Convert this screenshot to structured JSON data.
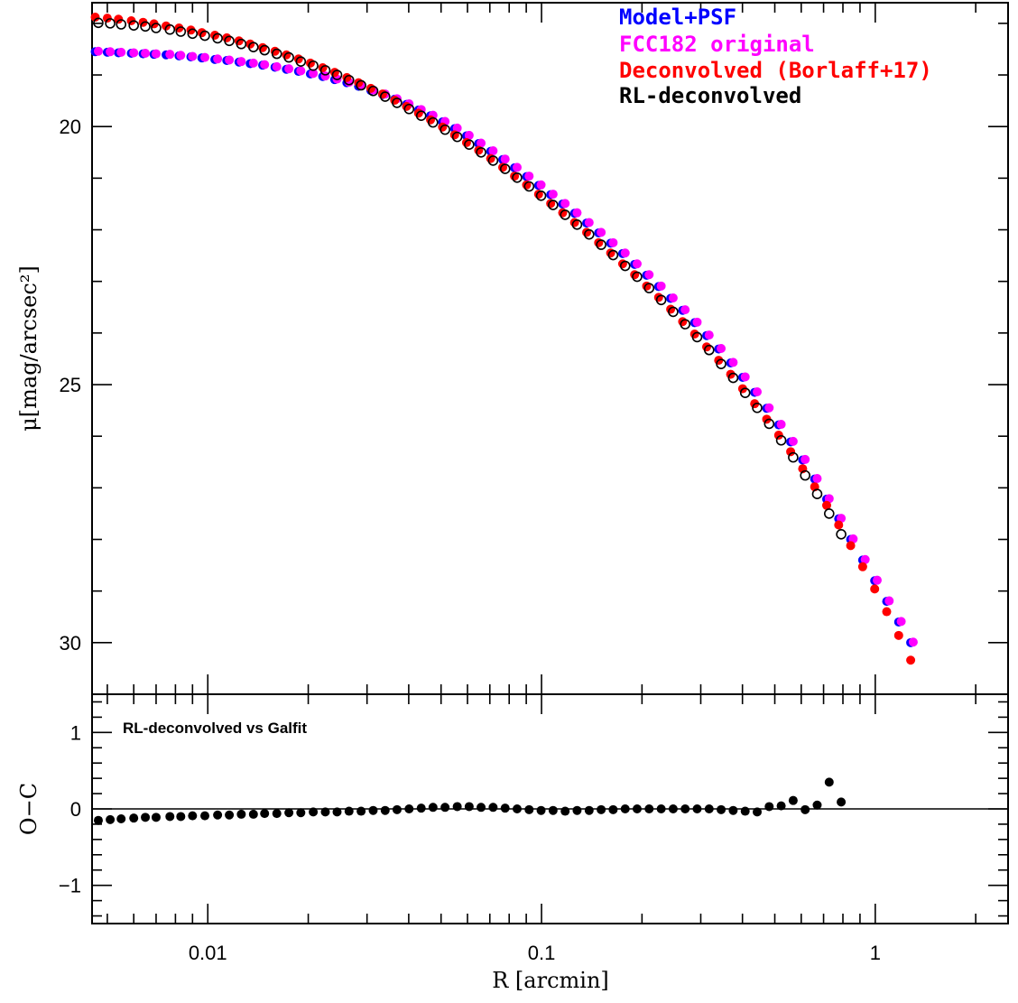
{
  "chart_data": [
    {
      "panel": "main",
      "type": "scatter",
      "title": "",
      "xlabel": "R [arcmin]",
      "ylabel": "μ[mag/arcsec²]",
      "xscale": "log",
      "xlim": [
        0.0045,
        2.5
      ],
      "ylim": [
        31.0,
        17.6
      ],
      "y_inverted": true,
      "y_ticks": [
        20,
        25,
        30
      ],
      "x_ticks": [
        0.01,
        0.1,
        1
      ],
      "x_tick_labels": [
        "0.01",
        "0.1",
        "1"
      ],
      "legend_position": "top-right",
      "series": [
        {
          "name": "Model+PSF",
          "color": "#0000ff",
          "marker": "filled",
          "x": [
            0.0046,
            0.005,
            0.0054,
            0.0059,
            0.0064,
            0.0069,
            0.0075,
            0.0082,
            0.0089,
            0.0096,
            0.0105,
            0.0114,
            0.0124,
            0.0134,
            0.0146,
            0.0159,
            0.0172,
            0.0187,
            0.0203,
            0.0221,
            0.024,
            0.0261,
            0.0283,
            0.0308,
            0.0334,
            0.0363,
            0.0394,
            0.0428,
            0.0465,
            0.0505,
            0.0549,
            0.0596,
            0.0648,
            0.0704,
            0.0765,
            0.083,
            0.0902,
            0.098,
            0.1065,
            0.1157,
            0.1256,
            0.1365,
            0.1483,
            0.1611,
            0.175,
            0.1901,
            0.2065,
            0.2243,
            0.2437,
            0.2647,
            0.2876,
            0.3124,
            0.3394,
            0.3687,
            0.4005,
            0.4351,
            0.4727,
            0.5135,
            0.5578,
            0.606,
            0.6583,
            0.7151,
            0.7769,
            0.8439,
            0.9168,
            0.996,
            1.082,
            1.1754,
            1.2768
          ],
          "y": [
            18.55,
            18.56,
            18.57,
            18.58,
            18.59,
            18.6,
            18.61,
            18.63,
            18.65,
            18.67,
            18.7,
            18.72,
            18.75,
            18.78,
            18.81,
            18.85,
            18.89,
            18.93,
            18.98,
            19.03,
            19.09,
            19.15,
            19.22,
            19.3,
            19.38,
            19.47,
            19.57,
            19.68,
            19.79,
            19.91,
            20.04,
            20.18,
            20.33,
            20.48,
            20.64,
            20.8,
            20.97,
            21.14,
            21.32,
            21.5,
            21.68,
            21.87,
            22.06,
            22.26,
            22.46,
            22.67,
            22.88,
            23.1,
            23.33,
            23.56,
            23.8,
            24.05,
            24.31,
            24.58,
            24.86,
            25.15,
            25.46,
            25.78,
            26.11,
            26.46,
            26.83,
            27.22,
            27.6,
            28.0,
            28.4,
            28.8,
            29.2,
            29.6,
            30.0
          ]
        },
        {
          "name": "FCC182 original",
          "color": "#ff00ff",
          "marker": "filled",
          "x": [
            0.0047,
            0.0051,
            0.0055,
            0.006,
            0.0065,
            0.007,
            0.0077,
            0.0083,
            0.009,
            0.0098,
            0.0107,
            0.0116,
            0.0126,
            0.0137,
            0.0148,
            0.0161,
            0.0175,
            0.019,
            0.0207,
            0.0225,
            0.0244,
            0.0265,
            0.0288,
            0.0313,
            0.034,
            0.0369,
            0.0401,
            0.0436,
            0.0473,
            0.0514,
            0.0559,
            0.0607,
            0.0659,
            0.0716,
            0.0778,
            0.0845,
            0.0918,
            0.0997,
            0.1083,
            0.1177,
            0.1278,
            0.1389,
            0.1509,
            0.1639,
            0.1781,
            0.1934,
            0.2101,
            0.2283,
            0.248,
            0.2694,
            0.2926,
            0.3179,
            0.3453,
            0.3752,
            0.4076,
            0.4428,
            0.481,
            0.5225,
            0.5676,
            0.6166,
            0.6698,
            0.7277,
            0.7905,
            0.8587,
            0.9329,
            1.0135,
            1.101,
            1.1961,
            1.2994
          ],
          "y": [
            18.54,
            18.55,
            18.56,
            18.57,
            18.58,
            18.59,
            18.6,
            18.62,
            18.64,
            18.66,
            18.69,
            18.71,
            18.74,
            18.77,
            18.8,
            18.84,
            18.88,
            18.92,
            18.97,
            19.02,
            19.08,
            19.14,
            19.21,
            19.29,
            19.37,
            19.46,
            19.56,
            19.67,
            19.78,
            19.9,
            20.03,
            20.17,
            20.32,
            20.47,
            20.63,
            20.79,
            20.96,
            21.13,
            21.31,
            21.49,
            21.67,
            21.86,
            22.05,
            22.25,
            22.45,
            22.66,
            22.87,
            23.09,
            23.32,
            23.55,
            23.79,
            24.04,
            24.3,
            24.57,
            24.85,
            25.14,
            25.45,
            25.77,
            26.1,
            26.45,
            26.82,
            27.21,
            27.59,
            27.99,
            28.39,
            28.79,
            29.19,
            29.59,
            29.99
          ]
        },
        {
          "name": "Deconvolved (Borlaff+17)",
          "color": "#ff0000",
          "marker": "filled",
          "x": [
            0.0046,
            0.005,
            0.0054,
            0.0059,
            0.0064,
            0.0069,
            0.0075,
            0.0082,
            0.0089,
            0.0096,
            0.0105,
            0.0114,
            0.0124,
            0.0134,
            0.0146,
            0.0159,
            0.0172,
            0.0187,
            0.0203,
            0.0221,
            0.024,
            0.0261,
            0.0283,
            0.0308,
            0.0334,
            0.0363,
            0.0394,
            0.0428,
            0.0465,
            0.0505,
            0.0549,
            0.0596,
            0.0648,
            0.0704,
            0.0765,
            0.083,
            0.0902,
            0.098,
            0.1065,
            0.1157,
            0.1256,
            0.1365,
            0.1483,
            0.1611,
            0.175,
            0.1901,
            0.2065,
            0.2243,
            0.2437,
            0.2647,
            0.2876,
            0.3124,
            0.3394,
            0.3687,
            0.4005,
            0.4351,
            0.4727,
            0.5135,
            0.5578,
            0.606,
            0.6583,
            0.7151,
            0.7769,
            0.8439,
            0.9168,
            0.996,
            1.082,
            1.1754,
            1.2768
          ],
          "y": [
            17.88,
            17.9,
            17.92,
            17.95,
            17.98,
            18.01,
            18.05,
            18.09,
            18.13,
            18.18,
            18.23,
            18.28,
            18.34,
            18.4,
            18.47,
            18.54,
            18.61,
            18.69,
            18.77,
            18.86,
            18.95,
            19.05,
            19.15,
            19.26,
            19.37,
            19.49,
            19.61,
            19.74,
            19.87,
            20.01,
            20.16,
            20.31,
            20.46,
            20.62,
            20.79,
            20.96,
            21.13,
            21.31,
            21.49,
            21.67,
            21.86,
            22.05,
            22.25,
            22.45,
            22.66,
            22.87,
            23.09,
            23.31,
            23.54,
            23.78,
            24.02,
            24.27,
            24.53,
            24.8,
            25.08,
            25.37,
            25.67,
            25.98,
            26.3,
            26.63,
            26.98,
            27.34,
            27.72,
            28.12,
            28.53,
            28.96,
            29.4,
            29.86,
            30.34
          ]
        },
        {
          "name": "RL-deconvolved",
          "color": "#000000",
          "marker": "open",
          "x": [
            0.0047,
            0.0051,
            0.0055,
            0.006,
            0.0065,
            0.007,
            0.0077,
            0.0083,
            0.009,
            0.0098,
            0.0107,
            0.0116,
            0.0126,
            0.0137,
            0.0148,
            0.0161,
            0.0175,
            0.019,
            0.0207,
            0.0225,
            0.0244,
            0.0265,
            0.0288,
            0.0313,
            0.034,
            0.0369,
            0.0401,
            0.0436,
            0.0473,
            0.0514,
            0.0559,
            0.0607,
            0.0659,
            0.0716,
            0.0778,
            0.0845,
            0.0918,
            0.0997,
            0.1083,
            0.1177,
            0.1278,
            0.1389,
            0.1509,
            0.1639,
            0.1781,
            0.1934,
            0.2101,
            0.2283,
            0.248,
            0.2694,
            0.2926,
            0.3179,
            0.3453,
            0.3752,
            0.4076,
            0.4428,
            0.481,
            0.5225,
            0.5676,
            0.6166,
            0.6698,
            0.7277,
            0.7905
          ],
          "y": [
            17.99,
            18.0,
            18.02,
            18.04,
            18.06,
            18.09,
            18.12,
            18.16,
            18.2,
            18.24,
            18.29,
            18.34,
            18.4,
            18.46,
            18.52,
            18.59,
            18.66,
            18.74,
            18.82,
            18.91,
            19.0,
            19.1,
            19.2,
            19.31,
            19.42,
            19.54,
            19.66,
            19.79,
            19.92,
            20.06,
            20.2,
            20.35,
            20.5,
            20.66,
            20.82,
            20.99,
            21.16,
            21.34,
            21.52,
            21.71,
            21.9,
            22.09,
            22.29,
            22.49,
            22.7,
            22.91,
            23.13,
            23.36,
            23.59,
            23.83,
            24.08,
            24.33,
            24.6,
            24.87,
            25.16,
            25.45,
            25.76,
            26.08,
            26.41,
            26.76,
            27.12,
            27.5,
            27.9
          ]
        }
      ]
    },
    {
      "panel": "residual",
      "type": "scatter",
      "xlabel": "R [arcmin]",
      "ylabel": "O−C",
      "xscale": "log",
      "xlim": [
        0.0045,
        2.5
      ],
      "ylim": [
        -1.5,
        1.5
      ],
      "y_ticks": [
        -1,
        0,
        1
      ],
      "y_tick_labels": [
        "−1",
        "0",
        "1"
      ],
      "reference_line": 0,
      "annotation": "RL-deconvolved vs Galfit",
      "series": [
        {
          "name": "O-C",
          "color": "#000000",
          "marker": "filled",
          "x": [
            0.0047,
            0.0051,
            0.0055,
            0.006,
            0.0065,
            0.007,
            0.0077,
            0.0083,
            0.009,
            0.0098,
            0.0107,
            0.0116,
            0.0126,
            0.0137,
            0.0148,
            0.0161,
            0.0175,
            0.019,
            0.0207,
            0.0225,
            0.0244,
            0.0265,
            0.0288,
            0.0313,
            0.034,
            0.0369,
            0.0401,
            0.0436,
            0.0473,
            0.0514,
            0.0559,
            0.0607,
            0.0659,
            0.0716,
            0.0778,
            0.0845,
            0.0918,
            0.0997,
            0.1083,
            0.1177,
            0.1278,
            0.1389,
            0.1509,
            0.1639,
            0.1781,
            0.1934,
            0.2101,
            0.2283,
            0.248,
            0.2694,
            0.2926,
            0.3179,
            0.3453,
            0.3752,
            0.4076,
            0.4428,
            0.481,
            0.5225,
            0.5676,
            0.6166,
            0.6698,
            0.7277,
            0.7905
          ],
          "y": [
            -0.15,
            -0.14,
            -0.13,
            -0.12,
            -0.11,
            -0.11,
            -0.1,
            -0.1,
            -0.09,
            -0.09,
            -0.08,
            -0.08,
            -0.07,
            -0.07,
            -0.06,
            -0.06,
            -0.05,
            -0.05,
            -0.04,
            -0.04,
            -0.04,
            -0.03,
            -0.03,
            -0.02,
            -0.02,
            -0.01,
            0.0,
            0.01,
            0.02,
            0.02,
            0.03,
            0.03,
            0.02,
            0.02,
            0.01,
            0.0,
            -0.01,
            -0.02,
            -0.02,
            -0.03,
            -0.02,
            -0.02,
            -0.01,
            -0.01,
            0.0,
            0.0,
            0.0,
            0.0,
            0.0,
            0.0,
            0.0,
            0.0,
            -0.01,
            -0.02,
            -0.03,
            -0.04,
            0.03,
            0.04,
            0.11,
            -0.01,
            0.05,
            0.35,
            0.09
          ]
        }
      ]
    }
  ]
}
